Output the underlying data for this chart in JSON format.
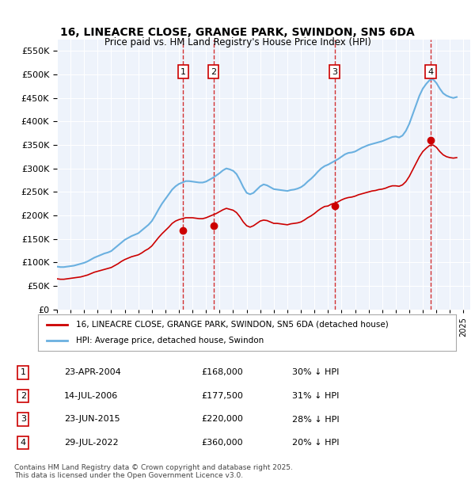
{
  "title": "16, LINEACRE CLOSE, GRANGE PARK, SWINDON, SN5 6DA",
  "subtitle": "Price paid vs. HM Land Registry's House Price Index (HPI)",
  "ylabel": "",
  "ylim": [
    0,
    575000
  ],
  "yticks": [
    0,
    50000,
    100000,
    150000,
    200000,
    250000,
    300000,
    350000,
    400000,
    450000,
    500000,
    550000
  ],
  "background_color": "#ffffff",
  "plot_bg_color": "#eef3fb",
  "grid_color": "#ffffff",
  "hpi_color": "#6ab0e0",
  "sale_color": "#cc0000",
  "dashed_color": "#cc0000",
  "sale_dates": [
    2004.31,
    2006.54,
    2015.48,
    2022.58
  ],
  "sale_prices": [
    168000,
    177500,
    220000,
    360000
  ],
  "sale_labels": [
    "1",
    "2",
    "3",
    "4"
  ],
  "transactions": [
    {
      "label": "1",
      "date": "23-APR-2004",
      "price": "£168,000",
      "hpi_pct": "30% ↓ HPI"
    },
    {
      "label": "2",
      "date": "14-JUL-2006",
      "price": "£177,500",
      "hpi_pct": "31% ↓ HPI"
    },
    {
      "label": "3",
      "date": "23-JUN-2015",
      "price": "£220,000",
      "hpi_pct": "28% ↓ HPI"
    },
    {
      "label": "4",
      "date": "29-JUL-2022",
      "price": "£360,000",
      "hpi_pct": "20% ↓ HPI"
    }
  ],
  "legend_line1": "16, LINEACRE CLOSE, GRANGE PARK, SWINDON, SN5 6DA (detached house)",
  "legend_line2": "HPI: Average price, detached house, Swindon",
  "footer": "Contains HM Land Registry data © Crown copyright and database right 2025.\nThis data is licensed under the Open Government Licence v3.0.",
  "hpi_data": {
    "years": [
      1995.0,
      1995.25,
      1995.5,
      1995.75,
      1996.0,
      1996.25,
      1996.5,
      1996.75,
      1997.0,
      1997.25,
      1997.5,
      1997.75,
      1998.0,
      1998.25,
      1998.5,
      1998.75,
      1999.0,
      1999.25,
      1999.5,
      1999.75,
      2000.0,
      2000.25,
      2000.5,
      2000.75,
      2001.0,
      2001.25,
      2001.5,
      2001.75,
      2002.0,
      2002.25,
      2002.5,
      2002.75,
      2003.0,
      2003.25,
      2003.5,
      2003.75,
      2004.0,
      2004.25,
      2004.5,
      2004.75,
      2005.0,
      2005.25,
      2005.5,
      2005.75,
      2006.0,
      2006.25,
      2006.5,
      2006.75,
      2007.0,
      2007.25,
      2007.5,
      2007.75,
      2008.0,
      2008.25,
      2008.5,
      2008.75,
      2009.0,
      2009.25,
      2009.5,
      2009.75,
      2010.0,
      2010.25,
      2010.5,
      2010.75,
      2011.0,
      2011.25,
      2011.5,
      2011.75,
      2012.0,
      2012.25,
      2012.5,
      2012.75,
      2013.0,
      2013.25,
      2013.5,
      2013.75,
      2014.0,
      2014.25,
      2014.5,
      2014.75,
      2015.0,
      2015.25,
      2015.5,
      2015.75,
      2016.0,
      2016.25,
      2016.5,
      2016.75,
      2017.0,
      2017.25,
      2017.5,
      2017.75,
      2018.0,
      2018.25,
      2018.5,
      2018.75,
      2019.0,
      2019.25,
      2019.5,
      2019.75,
      2020.0,
      2020.25,
      2020.5,
      2020.75,
      2021.0,
      2021.25,
      2021.5,
      2021.75,
      2022.0,
      2022.25,
      2022.5,
      2022.75,
      2023.0,
      2023.25,
      2023.5,
      2023.75,
      2024.0,
      2024.25,
      2024.5
    ],
    "values": [
      91000,
      90000,
      90000,
      91000,
      92000,
      93000,
      95000,
      97000,
      99000,
      102000,
      106000,
      110000,
      113000,
      116000,
      119000,
      121000,
      124000,
      130000,
      136000,
      142000,
      148000,
      152000,
      156000,
      159000,
      162000,
      168000,
      174000,
      180000,
      188000,
      200000,
      213000,
      225000,
      235000,
      245000,
      255000,
      262000,
      267000,
      270000,
      273000,
      273000,
      272000,
      271000,
      270000,
      270000,
      272000,
      276000,
      280000,
      285000,
      290000,
      296000,
      300000,
      298000,
      295000,
      288000,
      275000,
      260000,
      248000,
      245000,
      248000,
      255000,
      262000,
      266000,
      264000,
      260000,
      256000,
      255000,
      254000,
      253000,
      252000,
      254000,
      255000,
      257000,
      260000,
      265000,
      272000,
      278000,
      285000,
      293000,
      300000,
      305000,
      308000,
      312000,
      316000,
      320000,
      325000,
      330000,
      333000,
      334000,
      336000,
      340000,
      344000,
      347000,
      350000,
      352000,
      354000,
      356000,
      358000,
      361000,
      364000,
      367000,
      368000,
      366000,
      370000,
      380000,
      395000,
      415000,
      435000,
      455000,
      470000,
      480000,
      488000,
      490000,
      482000,
      470000,
      460000,
      455000,
      452000,
      450000,
      452000
    ]
  },
  "sale_hpi_data": {
    "years": [
      1995.0,
      1995.25,
      1995.5,
      1995.75,
      1996.0,
      1996.25,
      1996.5,
      1996.75,
      1997.0,
      1997.25,
      1997.5,
      1997.75,
      1998.0,
      1998.25,
      1998.5,
      1998.75,
      1999.0,
      1999.25,
      1999.5,
      1999.75,
      2000.0,
      2000.25,
      2000.5,
      2000.75,
      2001.0,
      2001.25,
      2001.5,
      2001.75,
      2002.0,
      2002.25,
      2002.5,
      2002.75,
      2003.0,
      2003.25,
      2003.5,
      2003.75,
      2004.0,
      2004.25,
      2004.5,
      2004.75,
      2005.0,
      2005.25,
      2005.5,
      2005.75,
      2006.0,
      2006.25,
      2006.5,
      2006.75,
      2007.0,
      2007.25,
      2007.5,
      2007.75,
      2008.0,
      2008.25,
      2008.5,
      2008.75,
      2009.0,
      2009.25,
      2009.5,
      2009.75,
      2010.0,
      2010.25,
      2010.5,
      2010.75,
      2011.0,
      2011.25,
      2011.5,
      2011.75,
      2012.0,
      2012.25,
      2012.5,
      2012.75,
      2013.0,
      2013.25,
      2013.5,
      2013.75,
      2014.0,
      2014.25,
      2014.5,
      2014.75,
      2015.0,
      2015.25,
      2015.5,
      2015.75,
      2016.0,
      2016.25,
      2016.5,
      2016.75,
      2017.0,
      2017.25,
      2017.5,
      2017.75,
      2018.0,
      2018.25,
      2018.5,
      2018.75,
      2019.0,
      2019.25,
      2019.5,
      2019.75,
      2020.0,
      2020.25,
      2020.5,
      2020.75,
      2021.0,
      2021.25,
      2021.5,
      2021.75,
      2022.0,
      2022.25,
      2022.5,
      2022.75,
      2023.0,
      2023.25,
      2023.5,
      2023.75,
      2024.0,
      2024.25,
      2024.5
    ],
    "values": [
      65000,
      64000,
      64000,
      65000,
      66000,
      67000,
      68000,
      69000,
      71000,
      73000,
      76000,
      79000,
      81000,
      83000,
      85000,
      87000,
      89000,
      93000,
      97000,
      102000,
      106000,
      109000,
      112000,
      114000,
      116000,
      120000,
      125000,
      129000,
      135000,
      144000,
      153000,
      161000,
      168000,
      175000,
      183000,
      188000,
      191000,
      193000,
      195000,
      195000,
      195000,
      194000,
      193000,
      193000,
      195000,
      198000,
      201000,
      204000,
      208000,
      212000,
      215000,
      213000,
      211000,
      206000,
      197000,
      186000,
      178000,
      175000,
      178000,
      183000,
      188000,
      190000,
      189000,
      186000,
      183000,
      183000,
      182000,
      181000,
      180000,
      182000,
      183000,
      184000,
      186000,
      190000,
      195000,
      199000,
      204000,
      210000,
      215000,
      219000,
      220000,
      224000,
      226000,
      229000,
      233000,
      236000,
      238000,
      239000,
      241000,
      244000,
      246000,
      248000,
      250000,
      252000,
      253000,
      255000,
      256000,
      258000,
      261000,
      263000,
      263000,
      262000,
      265000,
      272000,
      283000,
      297000,
      311000,
      325000,
      336000,
      343000,
      349000,
      350000,
      345000,
      336000,
      329000,
      325000,
      323000,
      322000,
      323000
    ]
  }
}
